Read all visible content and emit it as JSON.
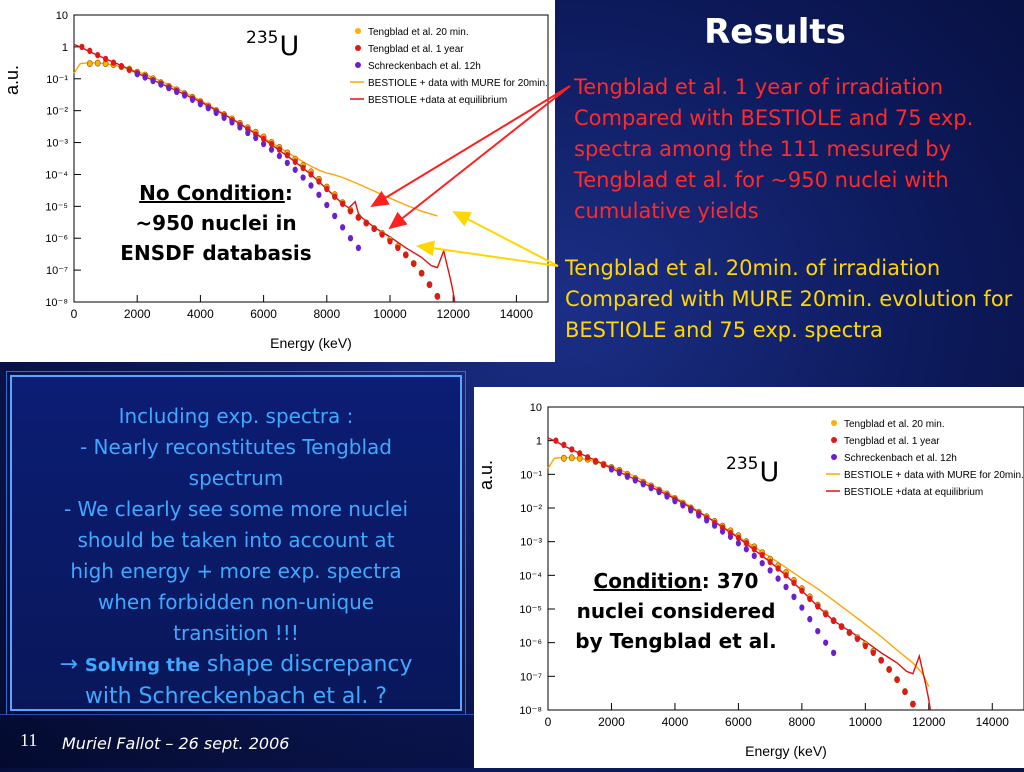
{
  "slide": {
    "title": "Results",
    "red_annotation": "Tengblad et al. 1 year of irradiation Compared with BESTIOLE and 75 exp. spectra among the 111 mesured by Tengblad et al. for ~950 nuclei with cumulative yields",
    "yellow_annotation": "Tengblad et al. 20min. of irradiation Compared with MURE 20min. evolution for BESTIOLE and 75 exp. spectra",
    "note1": {
      "label": "No Condition",
      "colon": ":",
      "line2": "~950 nuclei in",
      "line3": "ENSDF databasis"
    },
    "note2": {
      "label": "Condition",
      "rest": ": 370",
      "line2": "nuclei considered",
      "line3": "by Tengblad et al."
    },
    "isotope": {
      "mass": "235",
      "symbol": "U"
    },
    "box": {
      "l1": "Including exp. spectra :",
      "l2": "- Nearly reconstitutes Tengblad",
      "l3": "spectrum",
      "l4": "- We clearly see some more nuclei",
      "l5": "should be taken into account at",
      "l6": "high energy + more exp. spectra",
      "l7": "when forbidden non-unique",
      "l8": "transition !!!",
      "arrow": "→",
      "l9a": "Solving the",
      "l9b": " shape discrepancy",
      "l10": "with Schreckenbach et al. ?"
    },
    "footer": {
      "page": "11",
      "author": "Muriel Fallot – 26 sept. 2006"
    }
  },
  "colors": {
    "tengblad_20min": "#ffb000",
    "tengblad_1year": "#e01818",
    "schreckenbach": "#6a1fd0",
    "bestiole_mure": "#ffa500",
    "bestiole_eq": "#e01010",
    "annotation_red": "#ff2a2a",
    "annotation_yellow": "#ffd600"
  },
  "chart_data": [
    {
      "type": "scatter",
      "xlabel": "Energy (keV)",
      "ylabel": "a.u.",
      "xlim": [
        0,
        15000
      ],
      "ylim": [
        1e-08,
        10
      ],
      "yscale": "log",
      "x_ticks": [
        "0",
        "2000",
        "4000",
        "6000",
        "8000",
        "10000",
        "12000",
        "14000"
      ],
      "y_ticks": [
        "10⁻⁸",
        "10⁻⁷",
        "10⁻⁶",
        "10⁻⁵",
        "10⁻⁴",
        "10⁻³",
        "10⁻²",
        "10⁻¹",
        "1",
        "10"
      ],
      "legend_position": "top-right",
      "series": [
        {
          "name": "Tengblad et al. 20 min.",
          "marker": "circle",
          "x": [
            500,
            750,
            1000,
            1250,
            1500,
            1750,
            2000,
            2250,
            2500,
            2750,
            3000,
            3250,
            3500,
            3750,
            4000,
            4250,
            4500,
            4750,
            5000,
            5250,
            5500,
            5750,
            6000,
            6250,
            6500,
            6750,
            7000,
            7250,
            7500,
            7750,
            8000,
            8250,
            8500,
            8750,
            9000,
            9250,
            9500,
            9750,
            10000,
            10250,
            10500,
            10750,
            11000,
            11250,
            11500
          ],
          "y": [
            0.3,
            0.31,
            0.3,
            0.28,
            0.24,
            0.2,
            0.16,
            0.13,
            0.1,
            0.075,
            0.058,
            0.045,
            0.034,
            0.026,
            0.019,
            0.014,
            0.01,
            0.0075,
            0.0055,
            0.004,
            0.0029,
            0.0021,
            0.0015,
            0.001,
            0.0007,
            0.00047,
            0.0003,
            0.00019,
            0.00012,
            7e-05,
            4e-05,
            2.3e-05,
            1.3e-05,
            7.5e-06,
            4.5e-06,
            3e-06,
            2e-06,
            1.4e-06,
            9e-07,
            5.5e-07,
            3e-07,
            1.6e-07,
            8e-08,
            3.5e-08,
            1.5e-08
          ]
        },
        {
          "name": "Tengblad et al. 1 year",
          "marker": "circle",
          "x": [
            250,
            500,
            750,
            1000,
            1250,
            1500,
            1750,
            2000,
            2250,
            2500,
            2750,
            3000,
            3250,
            3500,
            3750,
            4000,
            4250,
            4500,
            4750,
            5000,
            5250,
            5500,
            5750,
            6000,
            6250,
            6500,
            6750,
            7000,
            7250,
            7500,
            7750,
            8000,
            8250,
            8500,
            8750,
            9000,
            9250,
            9500,
            9750,
            10000,
            10250,
            10500,
            10750,
            11000,
            11250,
            11500
          ],
          "y": [
            1.0,
            0.75,
            0.55,
            0.42,
            0.32,
            0.25,
            0.19,
            0.15,
            0.12,
            0.09,
            0.07,
            0.054,
            0.042,
            0.032,
            0.024,
            0.018,
            0.013,
            0.0095,
            0.007,
            0.005,
            0.0036,
            0.0026,
            0.0018,
            0.0013,
            0.0009,
            0.0006,
            0.0004,
            0.00025,
            0.00016,
            0.0001,
            6e-05,
            3.5e-05,
            2e-05,
            1.2e-05,
            7e-06,
            4.5e-06,
            3e-06,
            2e-06,
            1.3e-06,
            8e-07,
            5e-07,
            3e-07,
            1.6e-07,
            8e-08,
            3.5e-08,
            1.5e-08
          ]
        },
        {
          "name": "Schreckenbach et al. 12h",
          "marker": "circle",
          "x": [
            2000,
            2250,
            2500,
            2750,
            3000,
            3250,
            3500,
            3750,
            4000,
            4250,
            4500,
            4750,
            5000,
            5250,
            5500,
            5750,
            6000,
            6250,
            6500,
            6750,
            7000,
            7250,
            7500,
            7750,
            8000,
            8250,
            8500,
            8750,
            9000
          ],
          "y": [
            0.14,
            0.11,
            0.085,
            0.066,
            0.051,
            0.039,
            0.03,
            0.022,
            0.016,
            0.012,
            0.0085,
            0.006,
            0.0043,
            0.003,
            0.002,
            0.0014,
            0.0009,
            0.0006,
            0.00038,
            0.00023,
            0.00014,
            8e-05,
            4.5e-05,
            2.3e-05,
            1.1e-05,
            5e-06,
            2.2e-06,
            1e-06,
            5e-07
          ]
        }
      ],
      "lines": [
        {
          "name": "BESTIOLE + data with MURE for 20min.",
          "x": [
            0,
            200,
            500,
            1000,
            1500,
            2000,
            2500,
            3000,
            3500,
            4000,
            4500,
            5000,
            5500,
            6000,
            6500,
            7000,
            7500,
            7800,
            8000,
            8200,
            8500,
            9000,
            9500,
            10000,
            10500,
            11000,
            11500
          ],
          "y": [
            0.15,
            0.3,
            0.32,
            0.3,
            0.24,
            0.17,
            0.11,
            0.065,
            0.038,
            0.021,
            0.011,
            0.0055,
            0.0028,
            0.0014,
            0.0007,
            0.00035,
            0.00018,
            0.00013,
            0.00011,
            0.0001,
            8e-05,
            5e-05,
            3e-05,
            1.8e-05,
            1.1e-05,
            7e-06,
            5e-06
          ]
        },
        {
          "name": "BESTIOLE +data at equilibrium",
          "x": [
            0,
            250,
            500,
            1000,
            1500,
            2000,
            3000,
            4000,
            5000,
            6000,
            7000,
            7500,
            8000,
            8500,
            8700,
            8900,
            9000,
            9100,
            9500,
            10000,
            10500,
            11000,
            11300,
            11500,
            11700,
            11800,
            11900,
            12000,
            12050
          ],
          "y": [
            1.2,
            0.95,
            0.7,
            0.42,
            0.26,
            0.15,
            0.055,
            0.019,
            0.0055,
            0.0013,
            0.00025,
            0.0001,
            3.5e-05,
            1.2e-05,
            9e-06,
            1.4e-05,
            6e-06,
            4.5e-06,
            2.2e-06,
            1.1e-06,
            5e-07,
            2.5e-07,
            1.4e-07,
            1.2e-07,
            4e-07,
            1.5e-07,
            6e-08,
            2e-08,
            1e-08
          ]
        }
      ]
    },
    {
      "type": "scatter",
      "xlabel": "Energy (keV)",
      "ylabel": "a.u.",
      "xlim": [
        0,
        15000
      ],
      "ylim": [
        1e-08,
        10
      ],
      "yscale": "log",
      "x_ticks": [
        "0",
        "2000",
        "4000",
        "6000",
        "8000",
        "10000",
        "12000",
        "14000"
      ],
      "y_ticks": [
        "10⁻⁸",
        "10⁻⁷",
        "10⁻⁶",
        "10⁻⁵",
        "10⁻⁴",
        "10⁻³",
        "10⁻²",
        "10⁻¹",
        "1",
        "10"
      ],
      "legend_position": "top-right",
      "series": [
        {
          "name": "Tengblad et al. 20 min.",
          "marker": "circle",
          "x": [
            500,
            750,
            1000,
            1250,
            1500,
            1750,
            2000,
            2250,
            2500,
            2750,
            3000,
            3250,
            3500,
            3750,
            4000,
            4250,
            4500,
            4750,
            5000,
            5250,
            5500,
            5750,
            6000,
            6250,
            6500,
            6750,
            7000,
            7250,
            7500,
            7750,
            8000,
            8250,
            8500,
            8750,
            9000,
            9250,
            9500,
            9750,
            10000,
            10250,
            10500,
            10750,
            11000,
            11250,
            11500
          ],
          "y": [
            0.3,
            0.31,
            0.3,
            0.28,
            0.24,
            0.2,
            0.16,
            0.13,
            0.1,
            0.075,
            0.058,
            0.045,
            0.034,
            0.026,
            0.019,
            0.014,
            0.01,
            0.0075,
            0.0055,
            0.004,
            0.0029,
            0.0021,
            0.0015,
            0.001,
            0.0007,
            0.00047,
            0.0003,
            0.00019,
            0.00012,
            7e-05,
            4e-05,
            2.3e-05,
            1.3e-05,
            7.5e-06,
            4.5e-06,
            3e-06,
            2e-06,
            1.4e-06,
            9e-07,
            5.5e-07,
            3e-07,
            1.6e-07,
            8e-08,
            3.5e-08,
            1.5e-08
          ]
        },
        {
          "name": "Tengblad et al. 1 year",
          "marker": "circle",
          "x": [
            250,
            500,
            750,
            1000,
            1250,
            1500,
            1750,
            2000,
            2250,
            2500,
            2750,
            3000,
            3250,
            3500,
            3750,
            4000,
            4250,
            4500,
            4750,
            5000,
            5250,
            5500,
            5750,
            6000,
            6250,
            6500,
            6750,
            7000,
            7250,
            7500,
            7750,
            8000,
            8250,
            8500,
            8750,
            9000,
            9250,
            9500,
            9750,
            10000,
            10250,
            10500,
            10750,
            11000,
            11250,
            11500
          ],
          "y": [
            1.0,
            0.75,
            0.55,
            0.42,
            0.32,
            0.25,
            0.19,
            0.15,
            0.12,
            0.09,
            0.07,
            0.054,
            0.042,
            0.032,
            0.024,
            0.018,
            0.013,
            0.0095,
            0.007,
            0.005,
            0.0036,
            0.0026,
            0.0018,
            0.0013,
            0.0009,
            0.0006,
            0.0004,
            0.00025,
            0.00016,
            0.0001,
            6e-05,
            3.5e-05,
            2e-05,
            1.2e-05,
            7e-06,
            4.5e-06,
            3e-06,
            2e-06,
            1.3e-06,
            8e-07,
            5e-07,
            3e-07,
            1.6e-07,
            8e-08,
            3.5e-08,
            1.5e-08
          ]
        },
        {
          "name": "Schreckenbach et al. 12h",
          "marker": "circle",
          "x": [
            2000,
            2250,
            2500,
            2750,
            3000,
            3250,
            3500,
            3750,
            4000,
            4250,
            4500,
            4750,
            5000,
            5250,
            5500,
            5750,
            6000,
            6250,
            6500,
            6750,
            7000,
            7250,
            7500,
            7750,
            8000,
            8250,
            8500,
            8750,
            9000
          ],
          "y": [
            0.14,
            0.11,
            0.085,
            0.066,
            0.051,
            0.039,
            0.03,
            0.022,
            0.016,
            0.012,
            0.0085,
            0.006,
            0.0043,
            0.003,
            0.002,
            0.0014,
            0.0009,
            0.0006,
            0.00038,
            0.00023,
            0.00014,
            8e-05,
            4.5e-05,
            2.3e-05,
            1.1e-05,
            5e-06,
            2.2e-06,
            1e-06,
            5e-07
          ]
        }
      ],
      "lines": [
        {
          "name": "BESTIOLE + data with MURE for 20min.",
          "x": [
            0,
            200,
            500,
            1000,
            1500,
            2000,
            2500,
            3000,
            3500,
            4000,
            4500,
            5000,
            5500,
            6000,
            6500,
            7000,
            7500,
            8000,
            8500,
            9000,
            9500,
            10000,
            10500,
            11000,
            11500,
            11800,
            12000
          ],
          "y": [
            0.15,
            0.3,
            0.32,
            0.3,
            0.24,
            0.17,
            0.11,
            0.065,
            0.038,
            0.021,
            0.011,
            0.0055,
            0.0028,
            0.0014,
            0.0007,
            0.00035,
            0.00017,
            8e-05,
            4e-05,
            1.8e-05,
            8e-06,
            3.5e-06,
            1.5e-06,
            6e-07,
            2.5e-07,
            1.2e-07,
            5e-08
          ]
        },
        {
          "name": "BESTIOLE +data at equilibrium",
          "x": [
            0,
            250,
            500,
            1000,
            1500,
            2000,
            3000,
            4000,
            5000,
            6000,
            7000,
            7500,
            8000,
            8500,
            9000,
            9500,
            10000,
            10500,
            11000,
            11300,
            11500,
            11700,
            11800,
            11900,
            12000,
            12050
          ],
          "y": [
            1.2,
            0.95,
            0.7,
            0.42,
            0.26,
            0.15,
            0.055,
            0.019,
            0.0055,
            0.0013,
            0.00025,
            0.0001,
            3.5e-05,
            1.2e-05,
            4.5e-06,
            2.2e-06,
            1.1e-06,
            5e-07,
            2.5e-07,
            1.4e-07,
            1.2e-07,
            4e-07,
            1.5e-07,
            6e-08,
            2e-08,
            1e-08
          ]
        }
      ]
    }
  ]
}
